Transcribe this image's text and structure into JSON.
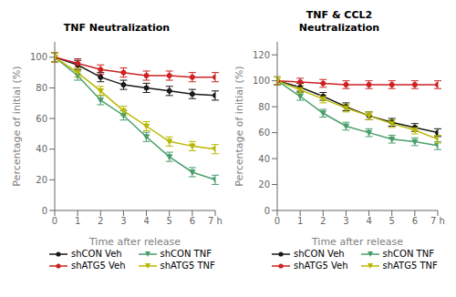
{
  "chart_data": [
    {
      "type": "line",
      "title": "TNF Neutralization",
      "x_label": "Time after release",
      "y_label": "Percentage of initial (%)",
      "x": [
        0,
        1,
        2,
        3,
        4,
        5,
        6,
        7
      ],
      "xlim": [
        0,
        7
      ],
      "ylim": [
        0,
        110
      ],
      "xticks": [
        0,
        1,
        2,
        3,
        4,
        5,
        6,
        {
          "value": 7,
          "label": "7 h"
        }
      ],
      "yticks": [
        0,
        20,
        40,
        60,
        80,
        100
      ],
      "legend": "bottom",
      "series": [
        {
          "name": "shCON Veh",
          "color": "#1a1a1a",
          "marker": "circle",
          "line_style": "solid",
          "values": [
            100,
            95,
            87,
            82,
            80,
            78,
            76,
            75
          ],
          "errors": [
            3.0,
            3.0,
            3.0,
            3.0,
            3.0,
            3.0,
            3.0,
            3.0
          ]
        },
        {
          "name": "shCON TNF",
          "color": "#4a9e6b",
          "marker": "triangle-down",
          "line_style": "solid",
          "values": [
            100,
            88,
            72,
            62,
            48,
            35,
            25,
            20
          ],
          "errors": [
            3.0,
            3.0,
            3.0,
            3.0,
            3.0,
            3.0,
            3.0,
            3.0
          ]
        },
        {
          "name": "shATG5 Veh",
          "color": "#cc2222",
          "marker": "circle",
          "line_style": "solid",
          "values": [
            100,
            96,
            92,
            90,
            88,
            88,
            87,
            87
          ],
          "errors": [
            3.0,
            3.0,
            3.0,
            3.0,
            3.0,
            3.0,
            3.0,
            3.0
          ]
        },
        {
          "name": "shATG5 TNF",
          "color": "#b8b800",
          "marker": "triangle-down",
          "line_style": "solid",
          "values": [
            100,
            90,
            78,
            65,
            55,
            45,
            42,
            40
          ],
          "errors": [
            3.0,
            3.0,
            3.0,
            3.0,
            3.0,
            3.0,
            3.0,
            3.0
          ]
        }
      ]
    },
    {
      "type": "line",
      "title": "TNF & CCL2\nNeutralization",
      "x_label": "Time after release",
      "y_label": "Percentage of initial (%)",
      "x": [
        0,
        1,
        2,
        3,
        4,
        5,
        6,
        7
      ],
      "xlim": [
        0,
        7
      ],
      "ylim": [
        0,
        130
      ],
      "xticks": [
        0,
        1,
        2,
        3,
        4,
        5,
        6,
        {
          "value": 7,
          "label": "7 h"
        }
      ],
      "yticks": [
        0,
        20,
        40,
        60,
        80,
        100,
        120
      ],
      "legend": "bottom",
      "series": [
        {
          "name": "shCON Veh",
          "color": "#1a1a1a",
          "marker": "circle",
          "line_style": "solid",
          "values": [
            100,
            95,
            88,
            80,
            73,
            68,
            64,
            60
          ],
          "errors": [
            3.0,
            3.0,
            3.0,
            3.0,
            3.0,
            3.0,
            3.0,
            3.0
          ]
        },
        {
          "name": "shCON TNF",
          "color": "#4a9e6b",
          "marker": "triangle-down",
          "line_style": "solid",
          "values": [
            100,
            88,
            75,
            65,
            60,
            55,
            53,
            50
          ],
          "errors": [
            3.0,
            3.0,
            3.0,
            3.0,
            3.0,
            3.0,
            3.0,
            3.0
          ]
        },
        {
          "name": "shATG5 Veh",
          "color": "#cc2222",
          "marker": "circle",
          "line_style": "solid",
          "values": [
            100,
            99,
            98,
            97,
            97,
            97,
            97,
            97
          ],
          "errors": [
            3.0,
            3.0,
            3.0,
            3.0,
            3.0,
            3.0,
            3.0,
            3.0
          ]
        },
        {
          "name": "shATG5 TNF",
          "color": "#b8b800",
          "marker": "triangle-down",
          "line_style": "solid",
          "values": [
            100,
            93,
            86,
            79,
            73,
            67,
            62,
            55
          ],
          "errors": [
            3.0,
            3.0,
            3.0,
            3.0,
            3.0,
            3.0,
            3.0,
            3.0
          ]
        }
      ]
    }
  ]
}
